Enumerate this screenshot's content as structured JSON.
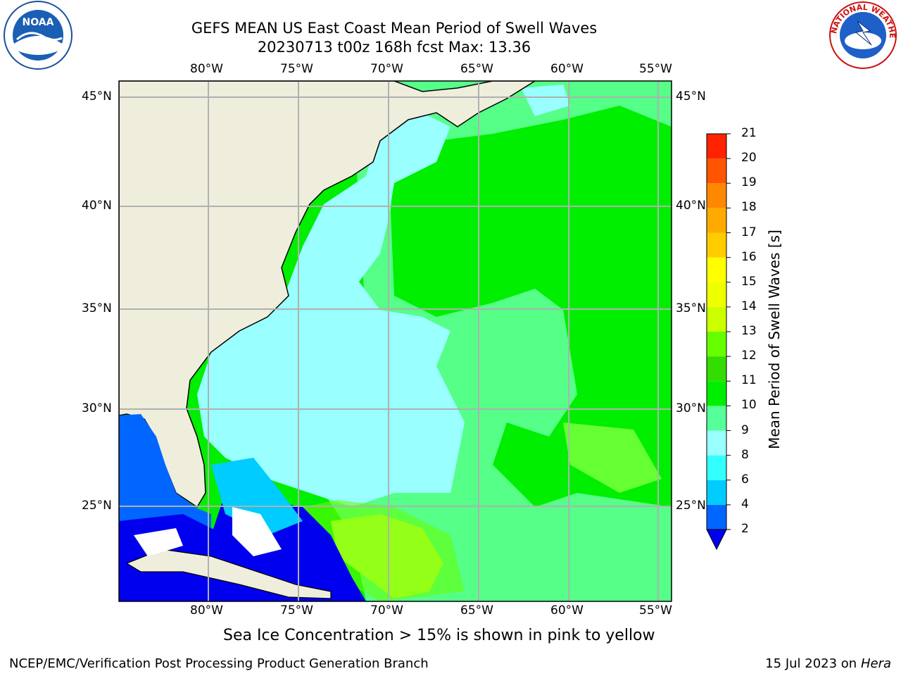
{
  "title": {
    "line1": "GEFS MEAN US East Coast Mean Period of Swell Waves",
    "line2": "20230713 t00z 168h fcst   Max: 13.36"
  },
  "logos": {
    "left": {
      "name": "noaa-logo",
      "text": "NOAA"
    },
    "right": {
      "name": "nws-logo",
      "text": "NATIONAL WEATHER SERVICE"
    }
  },
  "axes": {
    "lon_labels": [
      "80°W",
      "75°W",
      "70°W",
      "65°W",
      "60°W",
      "55°W"
    ],
    "lat_labels": [
      "45°N",
      "40°N",
      "35°N",
      "30°N",
      "25°N"
    ]
  },
  "colorbar": {
    "label": "Mean Period of Swell Waves [s]",
    "ticks": [
      "2",
      "4",
      "6",
      "8",
      "9",
      "10",
      "11",
      "12",
      "13",
      "14",
      "15",
      "16",
      "17",
      "18",
      "19",
      "20",
      "21"
    ],
    "colors": [
      "#0066ff",
      "#00ccff",
      "#33ffff",
      "#99ffff",
      "#55ff99",
      "#00ee00",
      "#33dd00",
      "#66ff00",
      "#ccff00",
      "#eeff00",
      "#ffff00",
      "#ffcc00",
      "#ffaa00",
      "#ff8800",
      "#ff5500",
      "#ff2200",
      "#ff0000"
    ]
  },
  "note": "Sea Ice Concentration > 15% is shown in pink to yellow",
  "footer": {
    "left": "NCEP/EMC/Verification Post Processing Product Generation Branch",
    "right_prefix": "15 Jul 2023 on ",
    "right_host": "Hera"
  }
}
